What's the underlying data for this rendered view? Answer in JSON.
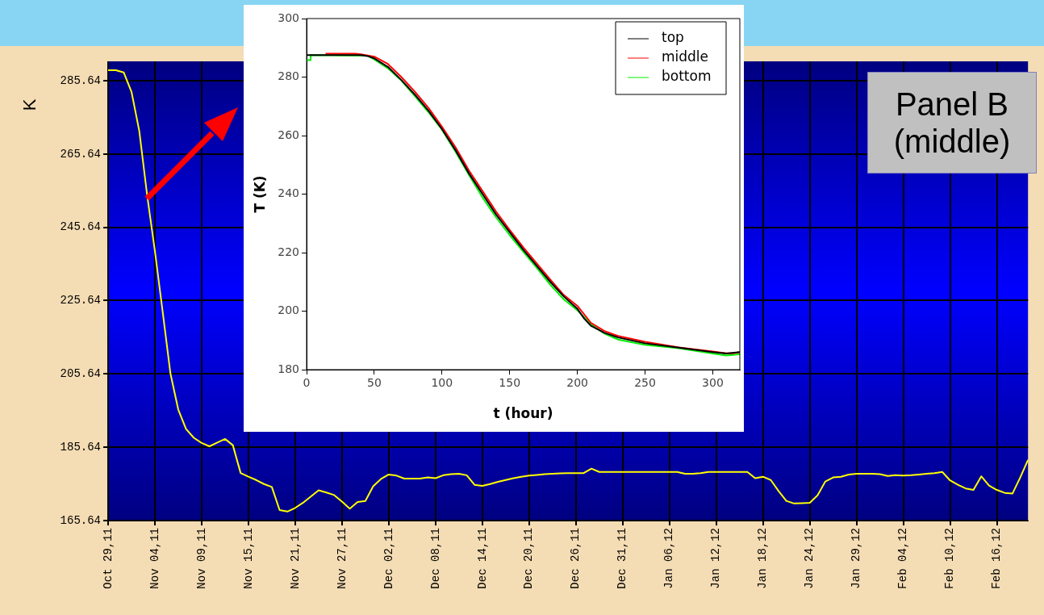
{
  "chart_data": [
    {
      "type": "line",
      "ylabel": "K",
      "ylim": [
        165.64,
        290.92
      ],
      "grid": true,
      "marker": "none",
      "categories": [
        "Oct 29,11",
        null,
        null,
        null,
        null,
        null,
        "Nov 04,11",
        null,
        null,
        null,
        null,
        null,
        "Nov 09,11",
        null,
        null,
        null,
        null,
        null,
        "Nov 15,11",
        null,
        null,
        null,
        null,
        null,
        "Nov 21,11",
        null,
        null,
        null,
        null,
        null,
        "Nov 27,11",
        null,
        null,
        null,
        null,
        null,
        "Dec 02,11",
        null,
        null,
        null,
        null,
        null,
        "Dec 08,11",
        null,
        null,
        null,
        null,
        null,
        "Dec 14,11",
        null,
        null,
        null,
        null,
        null,
        "Dec 20,11",
        null,
        null,
        null,
        null,
        null,
        "Dec 26,11",
        null,
        null,
        null,
        null,
        null,
        "Dec 31,11",
        null,
        null,
        null,
        null,
        null,
        "Jan 06,12",
        null,
        null,
        null,
        null,
        null,
        "Jan 12,12",
        null,
        null,
        null,
        null,
        null,
        "Jan 18,12",
        null,
        null,
        null,
        null,
        null,
        "Jan 24,12",
        null,
        null,
        null,
        null,
        null,
        "Jan 29,12",
        null,
        null,
        null,
        null,
        null,
        "Feb 04,12",
        null,
        null,
        null,
        null,
        null,
        "Feb 10,12",
        null,
        null,
        null,
        null,
        null,
        "Feb 16,12",
        null,
        null,
        null,
        null
      ],
      "yticks": [
        165.64,
        185.64,
        205.64,
        225.64,
        245.64,
        265.64,
        285.64
      ],
      "annotations": [
        "Panel B (middle)"
      ],
      "series": [
        {
          "color": "#ffff00",
          "values": [
            288.5,
            288.5,
            287.9,
            282.6,
            271.9,
            254.5,
            239.2,
            222.6,
            205.7,
            195.9,
            190.6,
            188.2,
            186.8,
            185.9,
            186.9,
            187.9,
            186.2,
            178.6,
            177.6,
            176.7,
            175.6,
            174.8,
            168.5,
            168.1,
            169.1,
            170.5,
            172.2,
            173.9,
            173.3,
            172.6,
            170.8,
            168.9,
            170.7,
            171.0,
            175.0,
            177.0,
            178.2,
            177.9,
            177.1,
            177.1,
            177.1,
            177.4,
            177.2,
            178.0,
            178.3,
            178.4,
            178.0,
            175.4,
            175.1,
            175.6,
            176.2,
            176.7,
            177.2,
            177.6,
            177.9,
            178.1,
            178.3,
            178.4,
            178.5,
            178.6,
            178.6,
            178.6,
            179.8,
            178.9,
            178.9,
            178.9,
            178.9,
            178.9,
            178.9,
            178.9,
            178.9,
            178.9,
            178.9,
            178.9,
            178.4,
            178.4,
            178.6,
            178.9,
            178.9,
            178.9,
            178.9,
            178.9,
            178.9,
            177.2,
            177.6,
            176.7,
            173.7,
            171.0,
            170.3,
            170.4,
            170.5,
            172.5,
            176.3,
            177.4,
            177.6,
            178.2,
            178.4,
            178.4,
            178.4,
            178.3,
            177.8,
            178.0,
            177.9,
            178.0,
            178.2,
            178.4,
            178.6,
            178.9,
            176.6,
            175.4,
            174.4,
            174.0,
            177.7,
            175.2,
            174.0,
            173.2,
            173.0,
            177.4,
            182.2
          ]
        }
      ]
    },
    {
      "type": "line",
      "xlabel": "t (hour)",
      "ylabel": "T (K)",
      "xlim": [
        0,
        320
      ],
      "ylim": [
        180,
        300
      ],
      "xticks": [
        0,
        50,
        100,
        150,
        200,
        250,
        300
      ],
      "yticks": [
        180,
        200,
        220,
        240,
        260,
        280,
        300
      ],
      "legend": "top right",
      "marker": "none",
      "series": [
        {
          "name": "top",
          "color": "#000000",
          "x": [
            0,
            40,
            45,
            50,
            60,
            70,
            80,
            90,
            100,
            110,
            120,
            130,
            140,
            150,
            160,
            170,
            180,
            190,
            200,
            205,
            210,
            220,
            230,
            250,
            275,
            300,
            310,
            320
          ],
          "values": [
            287.5,
            287.5,
            287.2,
            286.4,
            283.5,
            279,
            274,
            268.5,
            262.2,
            255,
            247,
            240,
            233,
            227,
            221,
            215.5,
            210,
            205,
            200.8,
            197.5,
            195,
            192.6,
            191,
            189,
            187.5,
            186,
            185.5,
            186
          ]
        },
        {
          "name": "middle",
          "color": "#ff0000",
          "x": [
            14,
            36,
            40,
            50,
            60,
            70,
            80,
            90,
            100,
            110,
            120,
            130,
            140,
            150,
            160,
            170,
            180,
            190,
            200,
            210,
            220,
            230,
            250,
            275,
            300,
            310,
            315,
            320
          ],
          "values": [
            288,
            288,
            287.8,
            287,
            284.5,
            280,
            275,
            269.5,
            263,
            256,
            248,
            241,
            234,
            227.8,
            221.8,
            216.3,
            210.8,
            205.5,
            201.8,
            196,
            193.2,
            191.5,
            189.5,
            187.6,
            186.2,
            185.6,
            185.6,
            186
          ]
        },
        {
          "name": "bottom",
          "color": "#00ee00",
          "x": [
            0,
            3,
            3,
            45,
            50,
            60,
            70,
            80,
            90,
            100,
            110,
            120,
            130,
            140,
            150,
            160,
            170,
            180,
            190,
            200,
            210,
            220,
            230,
            250,
            275,
            300,
            310,
            318,
            320
          ],
          "values": [
            285.8,
            285.8,
            287.5,
            287.3,
            286,
            283,
            278.8,
            273.5,
            268,
            262,
            254.5,
            246.5,
            238.8,
            232,
            226,
            220.3,
            214.8,
            209,
            204,
            200.3,
            195.5,
            192.3,
            190.3,
            188.5,
            187.3,
            185.5,
            184.8,
            185.2,
            185.3
          ]
        }
      ]
    }
  ]
}
